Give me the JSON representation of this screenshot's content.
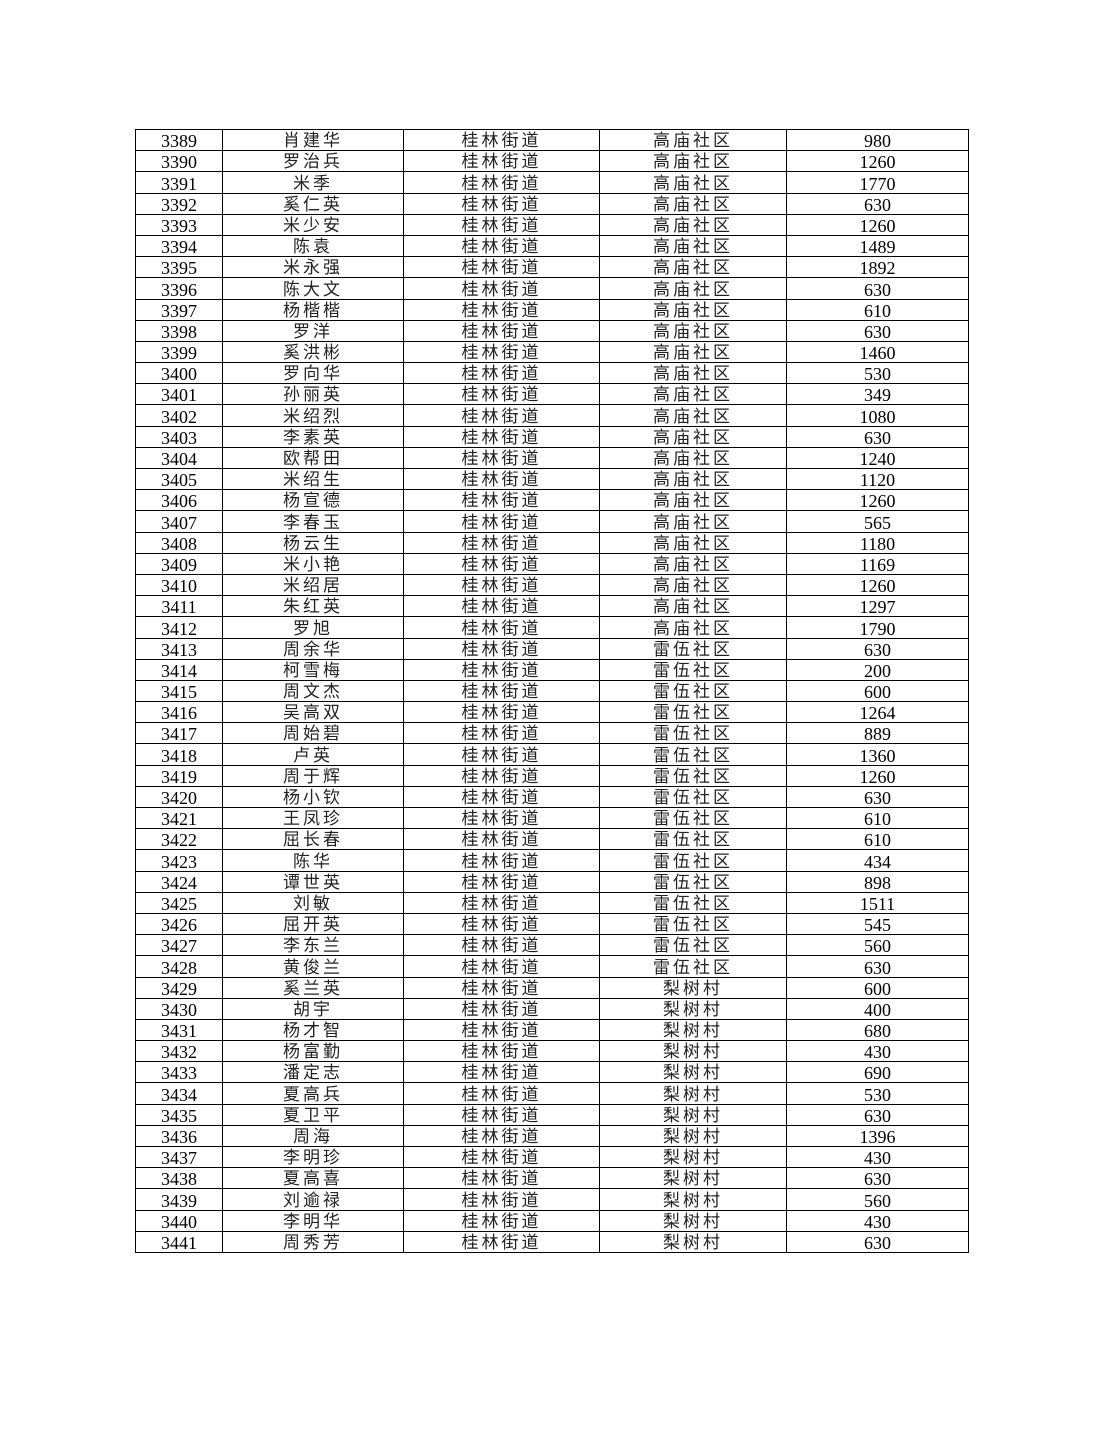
{
  "table": {
    "rows": [
      [
        "3389",
        "肖建华",
        "桂林街道",
        "高庙社区",
        "980"
      ],
      [
        "3390",
        "罗治兵",
        "桂林街道",
        "高庙社区",
        "1260"
      ],
      [
        "3391",
        "米季",
        "桂林街道",
        "高庙社区",
        "1770"
      ],
      [
        "3392",
        "奚仁英",
        "桂林街道",
        "高庙社区",
        "630"
      ],
      [
        "3393",
        "米少安",
        "桂林街道",
        "高庙社区",
        "1260"
      ],
      [
        "3394",
        "陈袁",
        "桂林街道",
        "高庙社区",
        "1489"
      ],
      [
        "3395",
        "米永强",
        "桂林街道",
        "高庙社区",
        "1892"
      ],
      [
        "3396",
        "陈大文",
        "桂林街道",
        "高庙社区",
        "630"
      ],
      [
        "3397",
        "杨楷楷",
        "桂林街道",
        "高庙社区",
        "610"
      ],
      [
        "3398",
        "罗洋",
        "桂林街道",
        "高庙社区",
        "630"
      ],
      [
        "3399",
        "奚洪彬",
        "桂林街道",
        "高庙社区",
        "1460"
      ],
      [
        "3400",
        "罗向华",
        "桂林街道",
        "高庙社区",
        "530"
      ],
      [
        "3401",
        "孙丽英",
        "桂林街道",
        "高庙社区",
        "349"
      ],
      [
        "3402",
        "米绍烈",
        "桂林街道",
        "高庙社区",
        "1080"
      ],
      [
        "3403",
        "李素英",
        "桂林街道",
        "高庙社区",
        "630"
      ],
      [
        "3404",
        "欧帮田",
        "桂林街道",
        "高庙社区",
        "1240"
      ],
      [
        "3405",
        "米绍生",
        "桂林街道",
        "高庙社区",
        "1120"
      ],
      [
        "3406",
        "杨宣德",
        "桂林街道",
        "高庙社区",
        "1260"
      ],
      [
        "3407",
        "李春玉",
        "桂林街道",
        "高庙社区",
        "565"
      ],
      [
        "3408",
        "杨云生",
        "桂林街道",
        "高庙社区",
        "1180"
      ],
      [
        "3409",
        "米小艳",
        "桂林街道",
        "高庙社区",
        "1169"
      ],
      [
        "3410",
        "米绍居",
        "桂林街道",
        "高庙社区",
        "1260"
      ],
      [
        "3411",
        "朱红英",
        "桂林街道",
        "高庙社区",
        "1297"
      ],
      [
        "3412",
        "罗旭",
        "桂林街道",
        "高庙社区",
        "1790"
      ],
      [
        "3413",
        "周余华",
        "桂林街道",
        "雷伍社区",
        "630"
      ],
      [
        "3414",
        "柯雪梅",
        "桂林街道",
        "雷伍社区",
        "200"
      ],
      [
        "3415",
        "周文杰",
        "桂林街道",
        "雷伍社区",
        "600"
      ],
      [
        "3416",
        "吴高双",
        "桂林街道",
        "雷伍社区",
        "1264"
      ],
      [
        "3417",
        "周始碧",
        "桂林街道",
        "雷伍社区",
        "889"
      ],
      [
        "3418",
        "卢英",
        "桂林街道",
        "雷伍社区",
        "1360"
      ],
      [
        "3419",
        "周于辉",
        "桂林街道",
        "雷伍社区",
        "1260"
      ],
      [
        "3420",
        "杨小钦",
        "桂林街道",
        "雷伍社区",
        "630"
      ],
      [
        "3421",
        "王凤珍",
        "桂林街道",
        "雷伍社区",
        "610"
      ],
      [
        "3422",
        "屈长春",
        "桂林街道",
        "雷伍社区",
        "610"
      ],
      [
        "3423",
        "陈华",
        "桂林街道",
        "雷伍社区",
        "434"
      ],
      [
        "3424",
        "谭世英",
        "桂林街道",
        "雷伍社区",
        "898"
      ],
      [
        "3425",
        "刘敏",
        "桂林街道",
        "雷伍社区",
        "1511"
      ],
      [
        "3426",
        "屈开英",
        "桂林街道",
        "雷伍社区",
        "545"
      ],
      [
        "3427",
        "李东兰",
        "桂林街道",
        "雷伍社区",
        "560"
      ],
      [
        "3428",
        "黄俊兰",
        "桂林街道",
        "雷伍社区",
        "630"
      ],
      [
        "3429",
        "奚兰英",
        "桂林街道",
        "梨树村",
        "600"
      ],
      [
        "3430",
        "胡宇",
        "桂林街道",
        "梨树村",
        "400"
      ],
      [
        "3431",
        "杨才智",
        "桂林街道",
        "梨树村",
        "680"
      ],
      [
        "3432",
        "杨富勤",
        "桂林街道",
        "梨树村",
        "430"
      ],
      [
        "3433",
        "潘定志",
        "桂林街道",
        "梨树村",
        "690"
      ],
      [
        "3434",
        "夏高兵",
        "桂林街道",
        "梨树村",
        "530"
      ],
      [
        "3435",
        "夏卫平",
        "桂林街道",
        "梨树村",
        "630"
      ],
      [
        "3436",
        "周海",
        "桂林街道",
        "梨树村",
        "1396"
      ],
      [
        "3437",
        "李明珍",
        "桂林街道",
        "梨树村",
        "430"
      ],
      [
        "3438",
        "夏高喜",
        "桂林街道",
        "梨树村",
        "630"
      ],
      [
        "3439",
        "刘逾禄",
        "桂林街道",
        "梨树村",
        "560"
      ],
      [
        "3440",
        "李明华",
        "桂林街道",
        "梨树村",
        "430"
      ],
      [
        "3441",
        "周秀芳",
        "桂林街道",
        "梨树村",
        "630"
      ]
    ]
  }
}
